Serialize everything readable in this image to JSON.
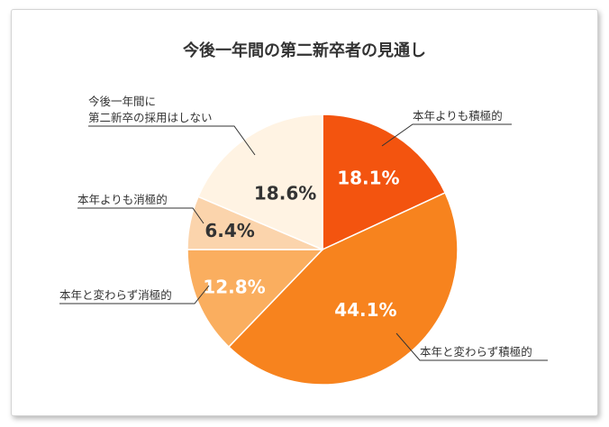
{
  "chart_data": {
    "type": "pie",
    "title": "今後一年間の第二新卒者の見通し",
    "slices": [
      {
        "label": "本年よりも積極的",
        "value": 18.1,
        "display": "18.1%",
        "color": "#f3540f",
        "text_color": "#ffffff"
      },
      {
        "label": "本年と変わらず積極的",
        "value": 44.1,
        "display": "44.1%",
        "color": "#f7831e",
        "text_color": "#ffffff"
      },
      {
        "label": "本年と変わらず消極的",
        "value": 12.8,
        "display": "12.8%",
        "color": "#faae5f",
        "text_color": "#ffffff"
      },
      {
        "label": "本年よりも消極的",
        "value": 6.4,
        "display": "6.4%",
        "color": "#fbd4ac",
        "text_color": "#333333"
      },
      {
        "label_lines": [
          "今後一年間に",
          "第二新卒の採用はしない"
        ],
        "value": 18.6,
        "display": "18.6%",
        "color": "#fff3e3",
        "text_color": "#333333"
      }
    ],
    "start_angle": "12 o'clock",
    "direction": "clockwise",
    "legend": "none"
  }
}
